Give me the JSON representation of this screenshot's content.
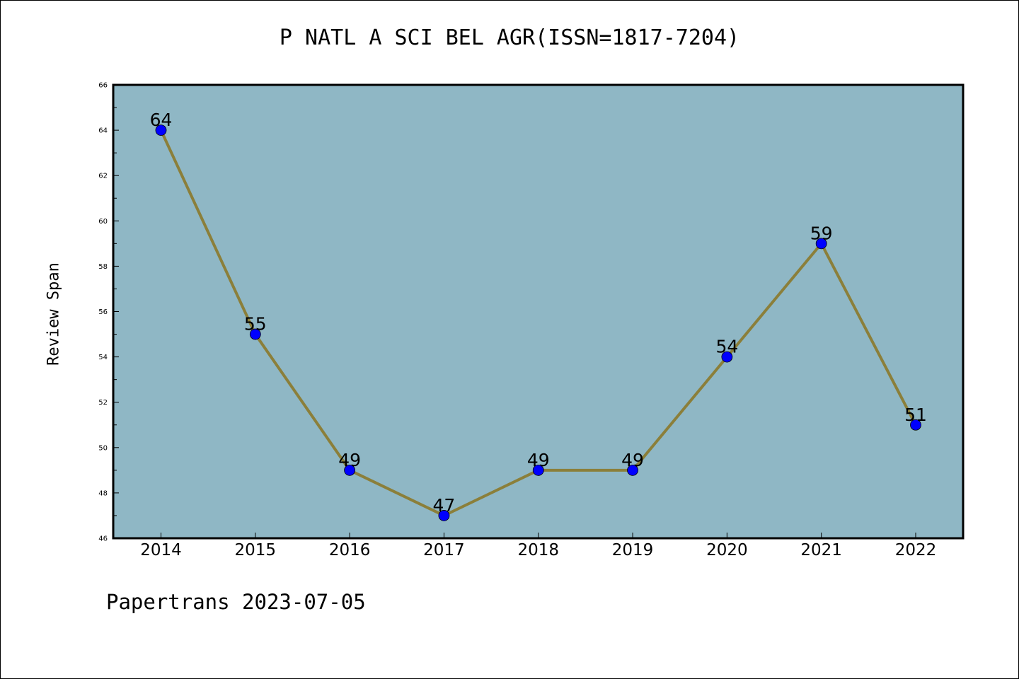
{
  "chart_data": {
    "type": "line",
    "title": "P NATL A SCI BEL AGR(ISSN=1817-7204)",
    "xlabel": "",
    "ylabel": "Review Span",
    "categories": [
      "2014",
      "2015",
      "2016",
      "2017",
      "2018",
      "2019",
      "2020",
      "2021",
      "2022"
    ],
    "series": [
      {
        "values": [
          64,
          55,
          49,
          47,
          49,
          49,
          54,
          59,
          51
        ]
      }
    ],
    "ylim": [
      46,
      66
    ],
    "y_ticks": [
      46,
      48,
      50,
      52,
      54,
      56,
      58,
      60,
      62,
      64,
      66
    ],
    "grid": false,
    "legend": "none",
    "data_labels": true,
    "colors": {
      "plot_background": "#8fb7c5",
      "line": "#8b7f3a",
      "marker": "#0000ff"
    }
  },
  "footer": {
    "text": "Papertrans 2023-07-05"
  }
}
